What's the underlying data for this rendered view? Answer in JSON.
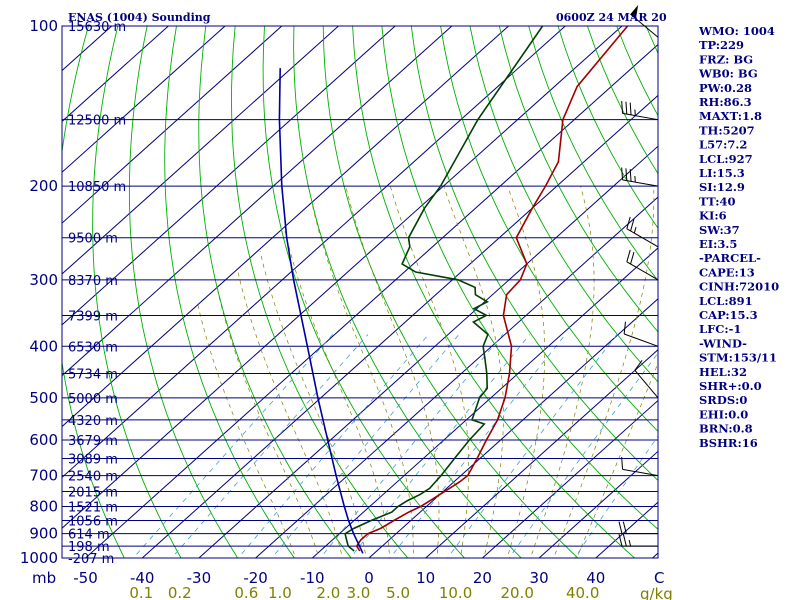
{
  "header": {
    "title": "ENAS (1004) Sounding",
    "valid_time": "0600Z 24 MAR 20"
  },
  "indices": [
    "WMO: 1004",
    "TP:229",
    "FRZ: BG",
    "WB0: BG",
    "PW:0.28",
    "RH:86.3",
    "MAXT:1.8",
    "TH:5207",
    "L57:7.2",
    "LCL:927",
    "LI:15.3",
    "SI:12.9",
    "TT:40",
    "KI:6",
    "SW:37",
    "EI:3.5",
    "-PARCEL-",
    "CAPE:13",
    "CINH:72010",
    "LCL:891",
    "CAP:15.3",
    "LFC:-1",
    "-WIND-",
    "STM:153/11",
    "HEL:32",
    "SHR+:0.0",
    "SRDS:0",
    "EHI:0.0",
    "BRN:0.8",
    "BSHR:16"
  ],
  "chart_data": {
    "type": "line",
    "title": "ENAS (1004) Sounding",
    "subtitle": "0600Z 24 MAR 20",
    "xlabel": "C",
    "ylabel": "mb",
    "x_axis": {
      "ticks": [
        -50,
        -40,
        -30,
        -20,
        -10,
        0,
        10,
        20,
        30,
        40
      ],
      "unit": "C"
    },
    "y_axis": {
      "scale": "log",
      "ticks": [
        100,
        200,
        300,
        400,
        500,
        600,
        700,
        800,
        900,
        1000
      ],
      "unit": "mb",
      "range": [
        100,
        1000
      ]
    },
    "mixing_ratio_axis": {
      "label": "g/kg",
      "ticks": [
        0.1,
        0.2,
        0.6,
        1.0,
        2.0,
        3.0,
        5.0,
        10.0,
        20.0,
        40.0
      ]
    },
    "height_labels": [
      {
        "p": 100,
        "label": "15630 m"
      },
      {
        "p": 150,
        "label": "12500 m"
      },
      {
        "p": 200,
        "label": "10850 m"
      },
      {
        "p": 250,
        "label": "9500 m"
      },
      {
        "p": 300,
        "label": "8370 m"
      },
      {
        "p": 350,
        "label": "7399 m"
      },
      {
        "p": 400,
        "label": "6530 m"
      },
      {
        "p": 450,
        "label": "5734 m"
      },
      {
        "p": 500,
        "label": "5000 m"
      },
      {
        "p": 550,
        "label": "4320 m"
      },
      {
        "p": 600,
        "label": "3679 m"
      },
      {
        "p": 650,
        "label": "3089 m"
      },
      {
        "p": 700,
        "label": "2540 m"
      },
      {
        "p": 750,
        "label": "2015 m"
      },
      {
        "p": 800,
        "label": "1521 m"
      },
      {
        "p": 850,
        "label": "1056 m"
      },
      {
        "p": 900,
        "label": "614 m"
      },
      {
        "p": 950,
        "label": "198 m"
      },
      {
        "p": 1000,
        "label": "-207 m"
      }
    ],
    "series": [
      {
        "key": "temperature",
        "color": "#a00000",
        "points": [
          [
            970,
            -3.0
          ],
          [
            950,
            -4.5
          ],
          [
            925,
            -5.0
          ],
          [
            900,
            -5.0
          ],
          [
            880,
            -3.8
          ],
          [
            850,
            -3.0
          ],
          [
            820,
            -2.0
          ],
          [
            800,
            -1.0
          ],
          [
            780,
            -0.5
          ],
          [
            760,
            0.0
          ],
          [
            740,
            0.5
          ],
          [
            720,
            1.0
          ],
          [
            700,
            1.2
          ],
          [
            650,
            -0.5
          ],
          [
            600,
            -2.5
          ],
          [
            550,
            -4.5
          ],
          [
            500,
            -7.5
          ],
          [
            450,
            -11.5
          ],
          [
            400,
            -16.5
          ],
          [
            350,
            -24.0
          ],
          [
            320,
            -27.5
          ],
          [
            300,
            -28.0
          ],
          [
            280,
            -30.0
          ],
          [
            250,
            -37.0
          ],
          [
            220,
            -40.0
          ],
          [
            200,
            -42.0
          ],
          [
            180,
            -44.5
          ],
          [
            150,
            -52.0
          ],
          [
            130,
            -56.0
          ],
          [
            100,
            -59.0
          ]
        ]
      },
      {
        "key": "dewpoint",
        "color": "#004000",
        "points": [
          [
            970,
            -4.0
          ],
          [
            950,
            -6.0
          ],
          [
            925,
            -7.5
          ],
          [
            900,
            -9.0
          ],
          [
            880,
            -8.5
          ],
          [
            850,
            -7.0
          ],
          [
            820,
            -5.0
          ],
          [
            800,
            -5.0
          ],
          [
            780,
            -4.5
          ],
          [
            760,
            -3.5
          ],
          [
            740,
            -3.0
          ],
          [
            700,
            -3.5
          ],
          [
            650,
            -4.5
          ],
          [
            600,
            -5.5
          ],
          [
            560,
            -6.0
          ],
          [
            550,
            -9.0
          ],
          [
            500,
            -12.0
          ],
          [
            480,
            -12.5
          ],
          [
            450,
            -15.5
          ],
          [
            420,
            -19.0
          ],
          [
            400,
            -21.5
          ],
          [
            380,
            -23.0
          ],
          [
            360,
            -28.0
          ],
          [
            350,
            -27.0
          ],
          [
            340,
            -30.5
          ],
          [
            330,
            -29.5
          ],
          [
            320,
            -33.0
          ],
          [
            310,
            -34.5
          ],
          [
            300,
            -39.0
          ],
          [
            290,
            -48.0
          ],
          [
            280,
            -52.0
          ],
          [
            260,
            -54.0
          ],
          [
            250,
            -56.0
          ],
          [
            220,
            -59.0
          ],
          [
            200,
            -60.5
          ],
          [
            150,
            -67.0
          ],
          [
            100,
            -74.0
          ]
        ]
      },
      {
        "key": "parcel",
        "color": "#0000a0",
        "points": [
          [
            980,
            -2.0
          ],
          [
            900,
            -7.5
          ],
          [
            850,
            -11.0
          ],
          [
            800,
            -14.5
          ],
          [
            700,
            -22.0
          ],
          [
            600,
            -30.5
          ],
          [
            500,
            -40.5
          ],
          [
            400,
            -52.5
          ],
          [
            300,
            -68.0
          ],
          [
            250,
            -77.5
          ],
          [
            200,
            -88.5
          ],
          [
            150,
            -102.0
          ],
          [
            120,
            -112.0
          ]
        ]
      }
    ],
    "wind_barbs": [
      {
        "p": 105,
        "dir": 310,
        "kt": 50
      },
      {
        "p": 150,
        "dir": 280,
        "kt": 35
      },
      {
        "p": 200,
        "dir": 280,
        "kt": 35
      },
      {
        "p": 260,
        "dir": 300,
        "kt": 25
      },
      {
        "p": 300,
        "dir": 300,
        "kt": 20
      },
      {
        "p": 400,
        "dir": 290,
        "kt": 10
      },
      {
        "p": 500,
        "dir": 320,
        "kt": 10
      },
      {
        "p": 700,
        "dir": 280,
        "kt": 10
      },
      {
        "p": 900,
        "dir": 270,
        "kt": 20
      },
      {
        "p": 950,
        "dir": 270,
        "kt": 25
      }
    ]
  }
}
